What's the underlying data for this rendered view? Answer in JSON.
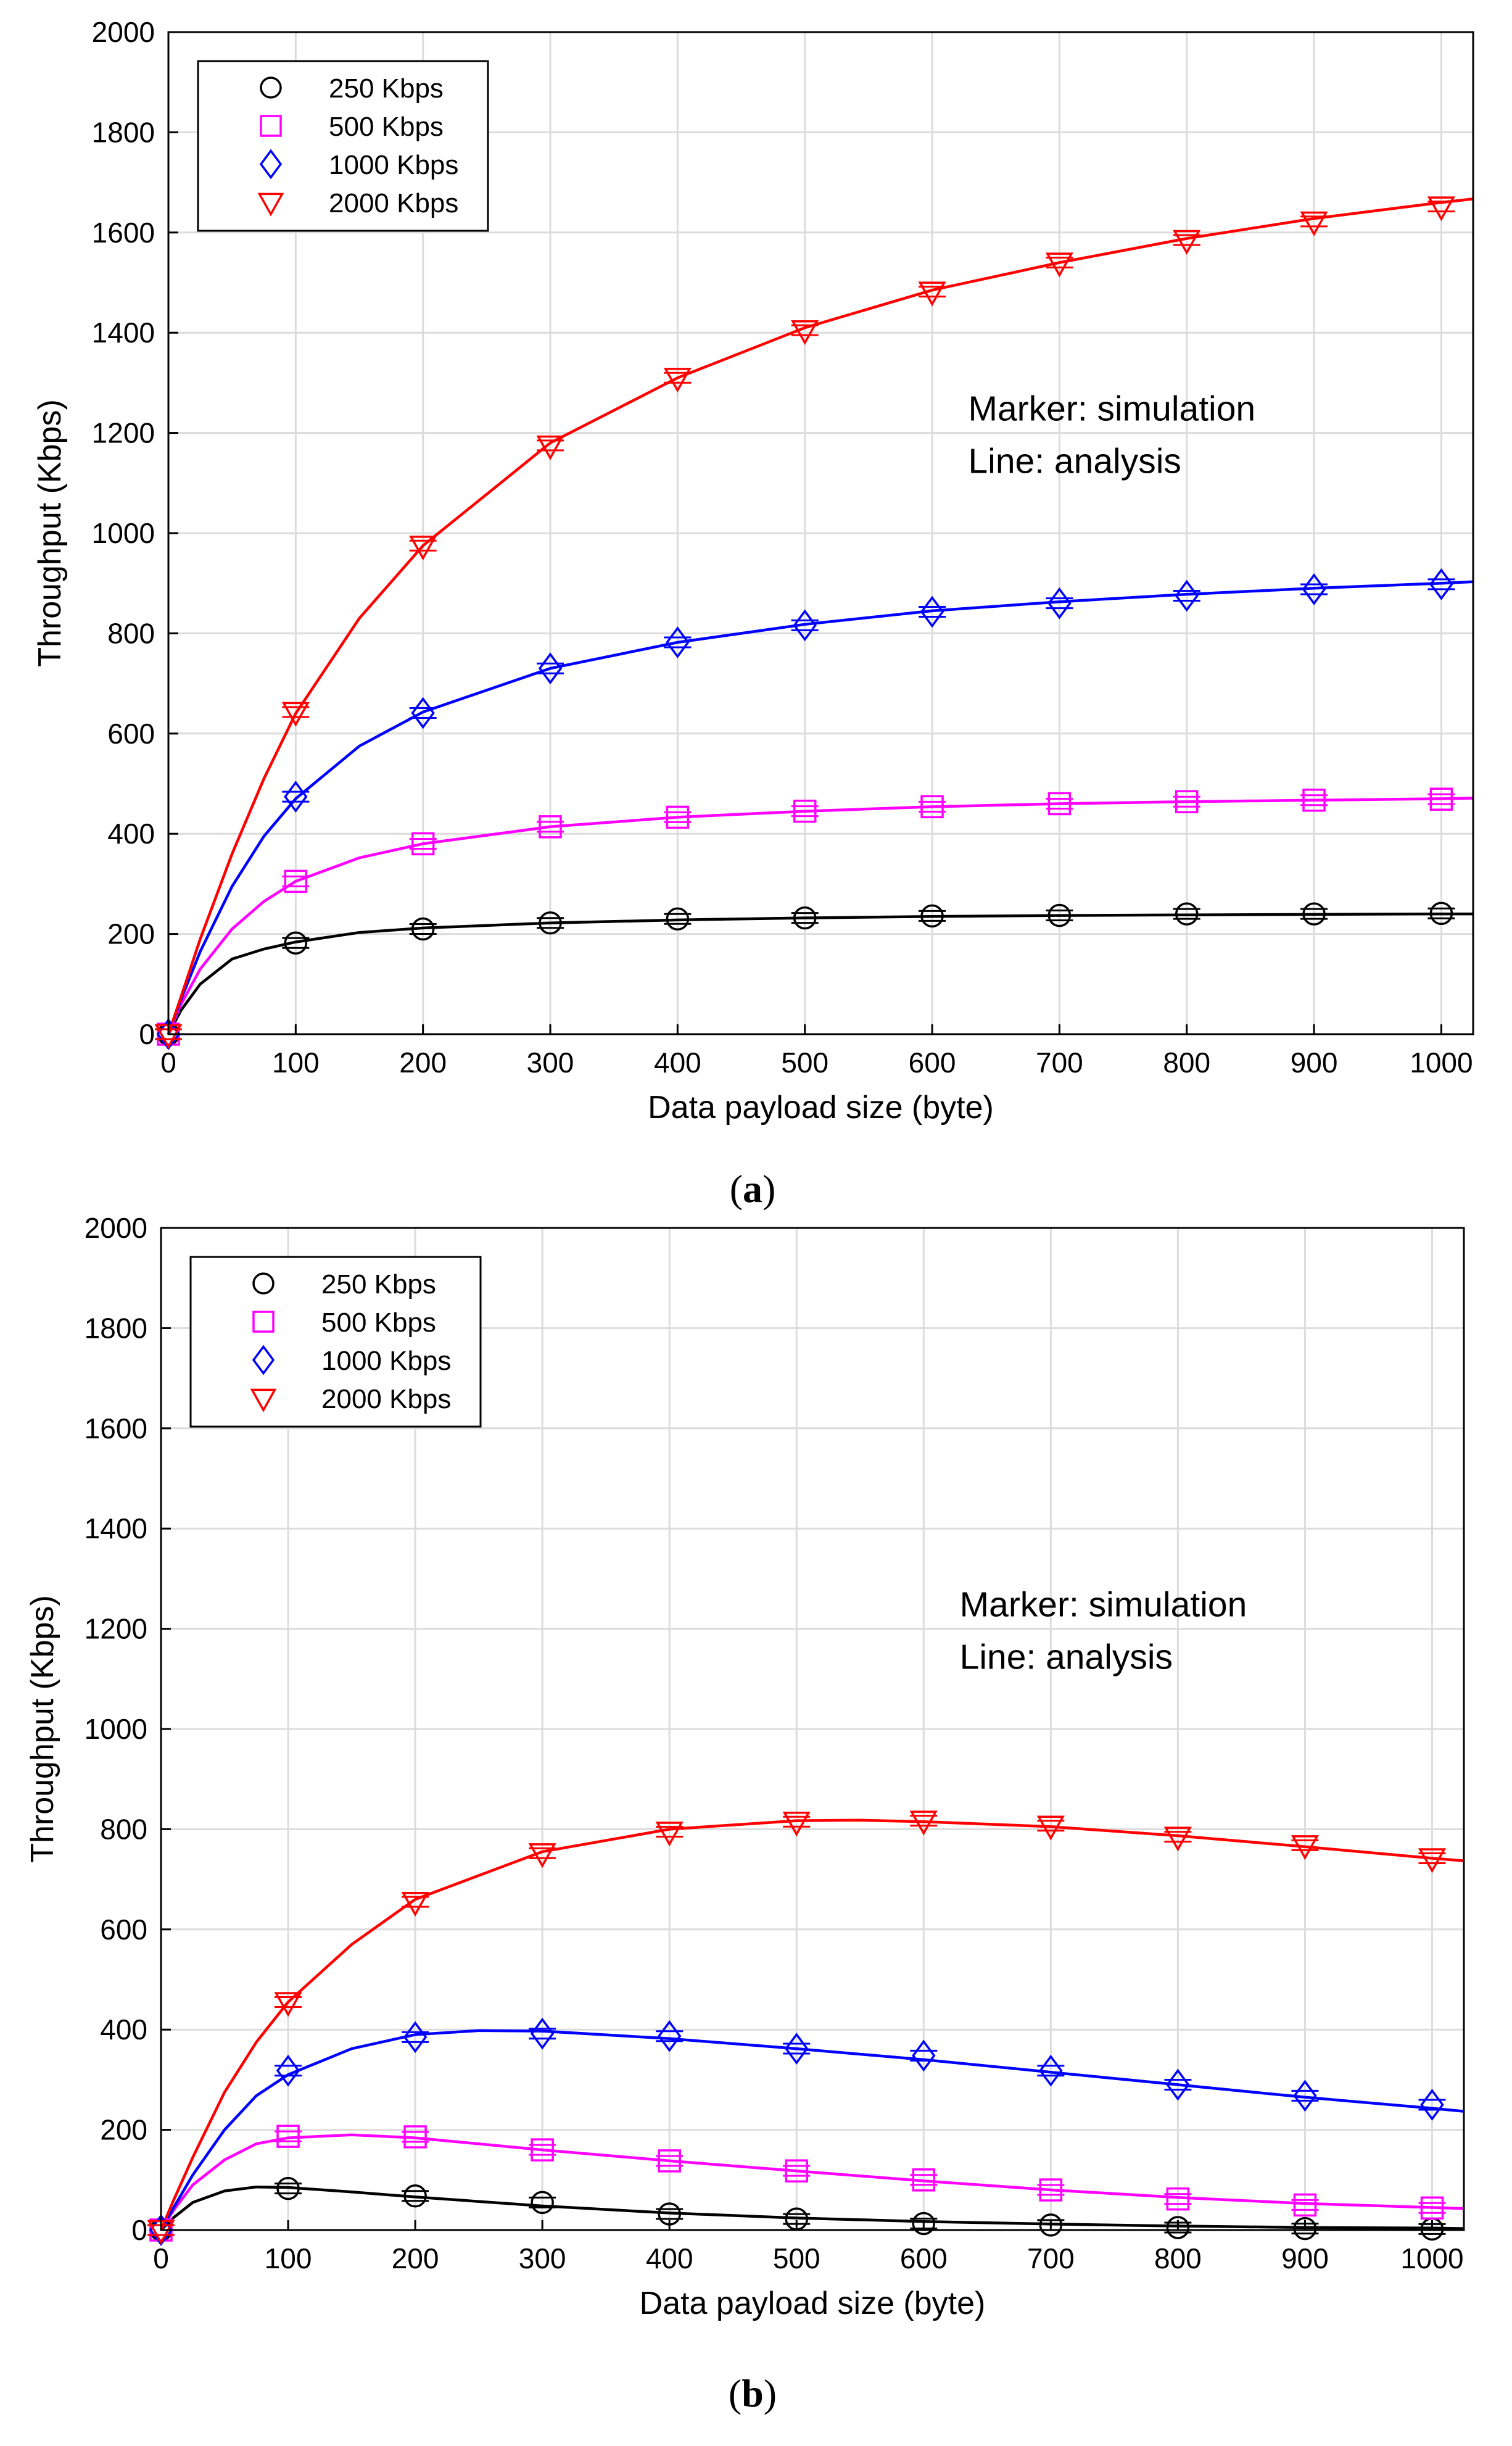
{
  "chart_data": [
    {
      "type": "line",
      "panel_label_paren_open": "(",
      "panel_label": "a",
      "panel_label_paren_close": ")",
      "xlabel": "Data payload size (byte)",
      "ylabel": "Throughput (Kbps)",
      "xlim": [
        0,
        1025
      ],
      "ylim": [
        0,
        2000
      ],
      "xticks": [
        0,
        100,
        200,
        300,
        400,
        500,
        600,
        700,
        800,
        900,
        1000
      ],
      "yticks": [
        0,
        200,
        400,
        600,
        800,
        1000,
        1200,
        1400,
        1600,
        1800,
        2000
      ],
      "grid": true,
      "legend_position": "top-left",
      "annotations": [
        "Marker: simulation",
        "Line: analysis"
      ],
      "series": [
        {
          "name": "250 Kbps",
          "marker": "circle",
          "color": "#000000",
          "x": [
            0,
            100,
            200,
            300,
            400,
            500,
            600,
            700,
            800,
            900,
            1000
          ],
          "values": [
            0,
            182,
            210,
            222,
            230,
            232,
            236,
            237,
            240,
            240,
            241
          ],
          "line": [
            [
              0,
              0
            ],
            [
              10,
              48
            ],
            [
              25,
              100
            ],
            [
              50,
              150
            ],
            [
              75,
              170
            ],
            [
              100,
              184
            ],
            [
              150,
              203
            ],
            [
              200,
              212
            ],
            [
              300,
              222
            ],
            [
              400,
              228
            ],
            [
              500,
              232
            ],
            [
              600,
              235
            ],
            [
              700,
              237
            ],
            [
              800,
              238
            ],
            [
              900,
              239
            ],
            [
              1000,
              240
            ],
            [
              1025,
              240
            ]
          ]
        },
        {
          "name": "500 Kbps",
          "marker": "square",
          "color": "#ff00ff",
          "x": [
            0,
            100,
            200,
            300,
            400,
            500,
            600,
            700,
            800,
            900,
            1000
          ],
          "values": [
            0,
            305,
            380,
            414,
            433,
            445,
            454,
            460,
            464,
            467,
            469
          ],
          "line": [
            [
              0,
              0
            ],
            [
              10,
              60
            ],
            [
              25,
              130
            ],
            [
              50,
              210
            ],
            [
              75,
              265
            ],
            [
              100,
              305
            ],
            [
              150,
              352
            ],
            [
              200,
              380
            ],
            [
              300,
              414
            ],
            [
              400,
              433
            ],
            [
              500,
              445
            ],
            [
              600,
              454
            ],
            [
              700,
              460
            ],
            [
              800,
              464
            ],
            [
              900,
              467
            ],
            [
              1000,
              470
            ],
            [
              1025,
              471
            ]
          ]
        },
        {
          "name": "1000 Kbps",
          "marker": "diamond",
          "color": "#0000ff",
          "x": [
            0,
            100,
            200,
            300,
            400,
            500,
            600,
            700,
            800,
            900,
            1000
          ],
          "values": [
            0,
            474,
            641,
            730,
            782,
            816,
            843,
            860,
            875,
            888,
            898
          ],
          "line": [
            [
              0,
              0
            ],
            [
              10,
              70
            ],
            [
              25,
              165
            ],
            [
              50,
              295
            ],
            [
              75,
              395
            ],
            [
              100,
              470
            ],
            [
              150,
              575
            ],
            [
              200,
              643
            ],
            [
              300,
              730
            ],
            [
              400,
              782
            ],
            [
              500,
              818
            ],
            [
              600,
              845
            ],
            [
              700,
              863
            ],
            [
              800,
              878
            ],
            [
              900,
              890
            ],
            [
              1000,
              900
            ],
            [
              1025,
              903
            ]
          ]
        },
        {
          "name": "2000 Kbps",
          "marker": "triangle-down",
          "color": "#ff0000",
          "x": [
            0,
            100,
            200,
            300,
            400,
            500,
            600,
            700,
            800,
            900,
            1000
          ],
          "values": [
            0,
            643,
            975,
            1175,
            1310,
            1405,
            1482,
            1540,
            1585,
            1622,
            1652
          ],
          "line": [
            [
              0,
              0
            ],
            [
              10,
              75
            ],
            [
              25,
              190
            ],
            [
              50,
              360
            ],
            [
              75,
              510
            ],
            [
              100,
              640
            ],
            [
              150,
              830
            ],
            [
              200,
              975
            ],
            [
              300,
              1180
            ],
            [
              400,
              1310
            ],
            [
              500,
              1410
            ],
            [
              600,
              1485
            ],
            [
              700,
              1540
            ],
            [
              800,
              1588
            ],
            [
              900,
              1628
            ],
            [
              1000,
              1660
            ],
            [
              1025,
              1667
            ]
          ]
        }
      ]
    },
    {
      "type": "line",
      "panel_label_paren_open": "(",
      "panel_label": "b",
      "panel_label_paren_close": ")",
      "xlabel": "Data payload size (byte)",
      "ylabel": "Throughput (Kbps)",
      "xlim": [
        0,
        1025
      ],
      "ylim": [
        0,
        2000
      ],
      "xticks": [
        0,
        100,
        200,
        300,
        400,
        500,
        600,
        700,
        800,
        900,
        1000
      ],
      "yticks": [
        0,
        200,
        400,
        600,
        800,
        1000,
        1200,
        1400,
        1600,
        1800,
        2000
      ],
      "grid": true,
      "legend_position": "top-left",
      "annotations": [
        "Marker: simulation",
        "Line: analysis"
      ],
      "series": [
        {
          "name": "250 Kbps",
          "marker": "circle",
          "color": "#000000",
          "x": [
            0,
            100,
            200,
            300,
            400,
            500,
            600,
            700,
            800,
            900,
            1000
          ],
          "values": [
            0,
            83,
            68,
            55,
            32,
            22,
            13,
            10,
            5,
            3,
            2
          ],
          "line": [
            [
              0,
              0
            ],
            [
              10,
              25
            ],
            [
              25,
              55
            ],
            [
              50,
              78
            ],
            [
              75,
              86
            ],
            [
              100,
              85
            ],
            [
              150,
              76
            ],
            [
              200,
              66
            ],
            [
              300,
              48
            ],
            [
              400,
              34
            ],
            [
              500,
              24
            ],
            [
              600,
              17
            ],
            [
              700,
              12
            ],
            [
              800,
              8
            ],
            [
              900,
              5
            ],
            [
              1000,
              4
            ],
            [
              1025,
              3
            ]
          ]
        },
        {
          "name": "500 Kbps",
          "marker": "square",
          "color": "#ff00ff",
          "x": [
            0,
            100,
            200,
            300,
            400,
            500,
            600,
            700,
            800,
            900,
            1000
          ],
          "values": [
            0,
            187,
            186,
            160,
            138,
            118,
            100,
            80,
            62,
            50,
            44
          ],
          "line": [
            [
              0,
              0
            ],
            [
              10,
              40
            ],
            [
              25,
              90
            ],
            [
              50,
              140
            ],
            [
              75,
              172
            ],
            [
              100,
              184
            ],
            [
              150,
              190
            ],
            [
              200,
              184
            ],
            [
              300,
              160
            ],
            [
              400,
              138
            ],
            [
              500,
              118
            ],
            [
              600,
              98
            ],
            [
              700,
              80
            ],
            [
              800,
              65
            ],
            [
              900,
              53
            ],
            [
              1000,
              45
            ],
            [
              1025,
              43
            ]
          ]
        },
        {
          "name": "1000 Kbps",
          "marker": "diamond",
          "color": "#0000ff",
          "x": [
            0,
            100,
            200,
            300,
            400,
            500,
            600,
            700,
            800,
            900,
            1000
          ],
          "values": [
            0,
            318,
            385,
            392,
            387,
            362,
            348,
            318,
            290,
            268,
            250
          ],
          "line": [
            [
              0,
              0
            ],
            [
              10,
              45
            ],
            [
              25,
              110
            ],
            [
              50,
              200
            ],
            [
              75,
              268
            ],
            [
              100,
              310
            ],
            [
              150,
              362
            ],
            [
              200,
              390
            ],
            [
              250,
              398
            ],
            [
              300,
              397
            ],
            [
              400,
              382
            ],
            [
              500,
              362
            ],
            [
              600,
              340
            ],
            [
              700,
              315
            ],
            [
              800,
              290
            ],
            [
              900,
              265
            ],
            [
              1000,
              243
            ],
            [
              1025,
              237
            ]
          ]
        },
        {
          "name": "2000 Kbps",
          "marker": "triangle-down",
          "color": "#ff0000",
          "x": [
            0,
            100,
            200,
            300,
            400,
            500,
            600,
            700,
            800,
            900,
            1000
          ],
          "values": [
            0,
            455,
            655,
            752,
            795,
            815,
            817,
            807,
            785,
            768,
            742
          ],
          "line": [
            [
              0,
              0
            ],
            [
              10,
              60
            ],
            [
              25,
              145
            ],
            [
              50,
              275
            ],
            [
              75,
              375
            ],
            [
              100,
              455
            ],
            [
              150,
              570
            ],
            [
              200,
              660
            ],
            [
              300,
              755
            ],
            [
              400,
              800
            ],
            [
              500,
              817
            ],
            [
              550,
              818
            ],
            [
              600,
              815
            ],
            [
              700,
              805
            ],
            [
              800,
              787
            ],
            [
              900,
              765
            ],
            [
              1000,
              742
            ],
            [
              1025,
              737
            ]
          ]
        }
      ]
    }
  ]
}
